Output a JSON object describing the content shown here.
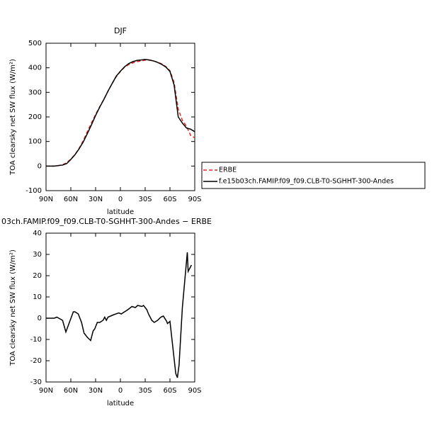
{
  "chart_data": [
    {
      "type": "line",
      "title": "DJF",
      "xlabel": "latitude",
      "ylabel": "TOA clearsky net SW flux (W/m²)",
      "x": [
        90,
        85,
        80,
        75,
        70,
        65,
        60,
        55,
        50,
        45,
        40,
        35,
        30,
        25,
        20,
        15,
        10,
        5,
        0,
        -5,
        -10,
        -15,
        -20,
        -25,
        -30,
        -35,
        -40,
        -45,
        -50,
        -55,
        -60,
        -65,
        -70,
        -75,
        -80,
        -85,
        -90
      ],
      "series": [
        {
          "name": "ERBE",
          "color": "#e8231f",
          "dashed": true,
          "values": [
            0,
            0,
            0,
            2,
            5,
            14,
            28,
            47,
            72,
            103,
            140,
            176,
            210,
            242,
            272,
            305,
            336,
            364,
            385,
            402,
            413,
            420,
            425,
            428,
            431,
            431,
            428,
            423,
            416,
            405,
            388,
            340,
            232,
            186,
            162,
            125,
            115
          ]
        },
        {
          "name": "f.e15b03ch.FAMIP.f09_f09.CLB-T0-SGHHT-300-Andes",
          "color": "#000000",
          "dashed": false,
          "values": [
            0,
            0,
            0,
            2,
            4,
            10,
            27,
            46,
            70,
            98,
            132,
            168,
            206,
            240,
            271,
            305,
            336,
            366,
            386,
            404,
            417,
            425,
            430,
            432,
            434,
            432,
            428,
            422,
            414,
            403,
            385,
            330,
            200,
            175,
            155,
            150,
            140
          ]
        }
      ],
      "xlim": [
        90,
        -90
      ],
      "xticks": [
        {
          "value": 90,
          "label": "90N"
        },
        {
          "value": 60,
          "label": "60N"
        },
        {
          "value": 30,
          "label": "30N"
        },
        0,
        {
          "value": -30,
          "label": "30S"
        },
        {
          "value": -60,
          "label": "60S"
        },
        {
          "value": -90,
          "label": "90S"
        }
      ],
      "ylim": [
        -100,
        500
      ],
      "yticks": [
        -100,
        0,
        100,
        200,
        300,
        400,
        500
      ]
    },
    {
      "type": "line",
      "title": "03ch.FAMIP.f09_f09.CLB-T0-SGHHT-300-Andes − ERBE",
      "xlabel": "latitude",
      "ylabel": "TOA clearsky net SW flux (W/m²)",
      "x": [
        90,
        80,
        77,
        70,
        66,
        57,
        55,
        51,
        47,
        44,
        40,
        36,
        33,
        31,
        28,
        25,
        21,
        19,
        17,
        15,
        9,
        2,
        -1,
        -5,
        -9,
        -14,
        -18,
        -21,
        -26,
        -28,
        -32,
        -34,
        -38,
        -41,
        -45,
        -49,
        -52,
        -56,
        -57,
        -60,
        -67,
        -69,
        -71,
        -75,
        -81,
        -82,
        -86
      ],
      "values": [
        0,
        0,
        0.5,
        -1,
        -6.5,
        3,
        3,
        2,
        -2,
        -7,
        -9,
        -10.5,
        -6,
        -5,
        -2,
        -2,
        -1,
        0.5,
        -1,
        0.5,
        1.5,
        2.5,
        2,
        3,
        4,
        5.5,
        5,
        6,
        5.5,
        6,
        4,
        2,
        -1,
        -2,
        -1,
        0.5,
        1,
        -1.5,
        -2.5,
        -1.5,
        -26,
        -28,
        -22,
        5,
        31,
        22,
        25
      ],
      "color": "#000000",
      "xlim": [
        90,
        -90
      ],
      "xticks": [
        {
          "value": 90,
          "label": "90N"
        },
        {
          "value": 60,
          "label": "60N"
        },
        {
          "value": 30,
          "label": "30N"
        },
        0,
        {
          "value": -30,
          "label": "30S"
        },
        {
          "value": -60,
          "label": "60S"
        },
        {
          "value": -90,
          "label": "90S"
        }
      ],
      "ylim": [
        -30,
        40
      ],
      "yticks": [
        -30,
        -20,
        -10,
        0,
        10,
        20,
        30,
        40
      ]
    }
  ]
}
